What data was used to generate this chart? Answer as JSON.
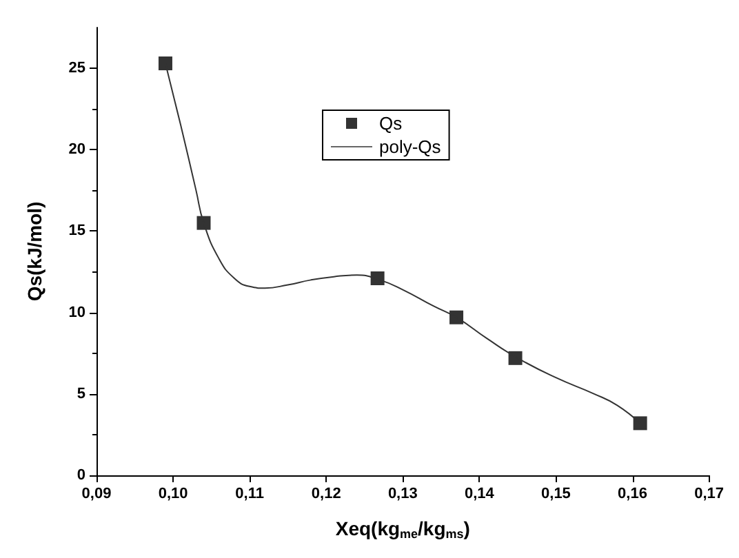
{
  "chart_data": {
    "type": "scatter",
    "xlabel": "Xeq(kg$_{me}$/kg$_{ms}$)",
    "ylabel": "Qs(kJ/mol)",
    "xlim": [
      0.09,
      0.17
    ],
    "ylim": [
      0,
      27.5
    ],
    "xticks": [
      {
        "value": 0.09,
        "label": "0,09"
      },
      {
        "value": 0.1,
        "label": "0,10"
      },
      {
        "value": 0.11,
        "label": "0,11"
      },
      {
        "value": 0.12,
        "label": "0,12"
      },
      {
        "value": 0.13,
        "label": "0,13"
      },
      {
        "value": 0.14,
        "label": "0,14"
      },
      {
        "value": 0.15,
        "label": "0,15"
      },
      {
        "value": 0.16,
        "label": "0,16"
      },
      {
        "value": 0.17,
        "label": "0,17"
      }
    ],
    "yticks": [
      0,
      5,
      10,
      15,
      20,
      25
    ],
    "legend": "top",
    "grid": false,
    "series": [
      {
        "name": "Qs",
        "marker": "square",
        "color": "#000000",
        "x": [
          0.099,
          0.104,
          0.1267,
          0.137,
          0.1447,
          0.161
        ],
        "values": [
          25.3,
          15.5,
          12.1,
          9.7,
          7.2,
          3.2
        ]
      },
      {
        "name": "poly-Qs",
        "type": "line",
        "marker": "none",
        "line_style": "solid",
        "color": "#333333",
        "x": [
          0.099,
          0.101,
          0.103,
          0.104,
          0.106,
          0.108,
          0.11,
          0.112,
          0.115,
          0.118,
          0.121,
          0.124,
          0.127,
          0.13,
          0.134,
          0.137,
          0.141,
          0.145,
          0.15,
          0.155,
          0.158,
          0.161
        ],
        "values": [
          25.3,
          21.5,
          17.5,
          15.5,
          13.3,
          12.1,
          11.6,
          11.5,
          11.7,
          12.0,
          12.2,
          12.3,
          12.0,
          11.4,
          10.4,
          9.7,
          8.4,
          7.2,
          6.0,
          5.0,
          4.3,
          3.2
        ]
      }
    ]
  }
}
